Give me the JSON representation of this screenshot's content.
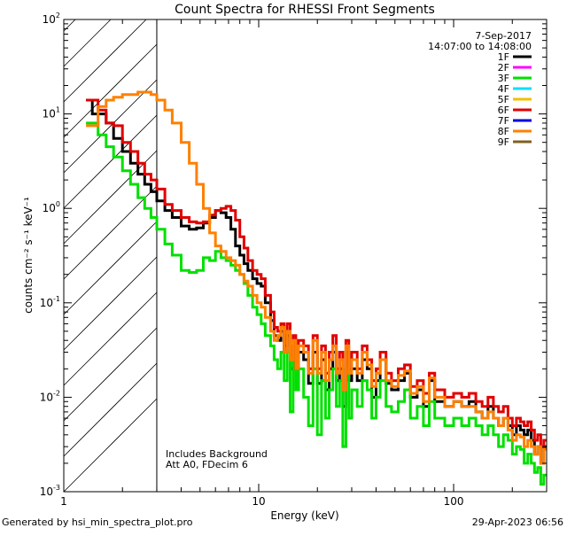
{
  "chart_data": {
    "type": "line",
    "title": "Count Spectra for RHESSI Front Segments",
    "xlabel": "Energy (keV)",
    "ylabel": "counts cm⁻² s⁻¹ keV⁻¹",
    "xscale": "log",
    "yscale": "log",
    "xlim": [
      1.0,
      300
    ],
    "ylim": [
      0.001,
      100
    ],
    "x_tick_labels": [
      "1",
      "10",
      "100"
    ],
    "y_tick_labels": [
      {
        "base": "10",
        "exp": "-3"
      },
      {
        "base": "10",
        "exp": "-2"
      },
      {
        "base": "10",
        "exp": "-1"
      },
      {
        "base": "10",
        "exp": "0"
      },
      {
        "base": "10",
        "exp": "1"
      },
      {
        "base": "10",
        "exp": "2"
      }
    ],
    "hatched_region": {
      "x_start": 1.0,
      "x_end": 3.0
    },
    "date_label": "7-Sep-2017",
    "time_range_label": "14:07:00 to 14:08:00",
    "annotation_lines": [
      "Includes Background",
      "Att A0, FDecim 6"
    ],
    "legend": [
      {
        "name": "1F",
        "color": "#000000"
      },
      {
        "name": "2F",
        "color": "#ff00ff"
      },
      {
        "name": "3F",
        "color": "#00e000"
      },
      {
        "name": "4F",
        "color": "#00e0ff"
      },
      {
        "name": "5F",
        "color": "#f0c000"
      },
      {
        "name": "6F",
        "color": "#e00000"
      },
      {
        "name": "7F",
        "color": "#0000e0"
      },
      {
        "name": "8F",
        "color": "#ff8000"
      },
      {
        "name": "9F",
        "color": "#806020"
      }
    ],
    "series": [
      {
        "name": "1F",
        "color": "#000000",
        "x": [
          1.3,
          1.4,
          1.5,
          1.65,
          1.8,
          2.0,
          2.2,
          2.4,
          2.6,
          2.8,
          3.0,
          3.3,
          3.6,
          4.0,
          4.4,
          4.8,
          5.2,
          5.6,
          6.0,
          6.4,
          6.8,
          7.2,
          7.6,
          8.0,
          8.4,
          8.8,
          9.3,
          9.8,
          10.3,
          10.8,
          11.5,
          12.0,
          12.5,
          13.0,
          13.5,
          14.0,
          14.5,
          15.0,
          15.5,
          16.0,
          17.0,
          18.0,
          19.0,
          20.0,
          21.0,
          22.0,
          23.0,
          24.0,
          25.0,
          26.0,
          27.0,
          28.0,
          29.0,
          30.0,
          32.0,
          34.0,
          36.0,
          38.0,
          40.0,
          42.0,
          45.0,
          48.0,
          52.0,
          56.0,
          60.0,
          65.0,
          70.0,
          75.0,
          80.0,
          90.0,
          100.0,
          110.0,
          120.0,
          130.0,
          140.0,
          150.0,
          160.0,
          170.0,
          180.0,
          190.0,
          200.0,
          210.0,
          220.0,
          230.0,
          240.0,
          250.0,
          260.0,
          270.0,
          280.0,
          290.0
        ],
        "y": [
          14,
          10,
          10,
          8,
          5.5,
          4,
          3,
          2.3,
          1.8,
          1.5,
          1.2,
          0.95,
          0.8,
          0.65,
          0.6,
          0.62,
          0.7,
          0.8,
          0.95,
          0.9,
          0.8,
          0.6,
          0.4,
          0.32,
          0.26,
          0.22,
          0.18,
          0.16,
          0.15,
          0.1,
          0.065,
          0.045,
          0.04,
          0.05,
          0.03,
          0.045,
          0.02,
          0.035,
          0.012,
          0.03,
          0.025,
          0.014,
          0.03,
          0.014,
          0.025,
          0.012,
          0.02,
          0.03,
          0.015,
          0.02,
          0.008,
          0.03,
          0.015,
          0.02,
          0.015,
          0.025,
          0.02,
          0.01,
          0.015,
          0.025,
          0.014,
          0.012,
          0.015,
          0.018,
          0.01,
          0.012,
          0.008,
          0.015,
          0.009,
          0.008,
          0.009,
          0.008,
          0.009,
          0.007,
          0.006,
          0.008,
          0.006,
          0.005,
          0.006,
          0.005,
          0.004,
          0.005,
          0.0045,
          0.004,
          0.0045,
          0.0035,
          0.0025,
          0.003,
          0.002,
          0.003
        ]
      },
      {
        "name": "3F",
        "color": "#00e000",
        "x": [
          1.3,
          1.4,
          1.5,
          1.65,
          1.8,
          2.0,
          2.2,
          2.4,
          2.6,
          2.8,
          3.0,
          3.3,
          3.6,
          4.0,
          4.4,
          4.8,
          5.2,
          5.6,
          6.0,
          6.4,
          6.8,
          7.2,
          7.6,
          8.0,
          8.4,
          8.8,
          9.3,
          9.8,
          10.3,
          10.8,
          11.5,
          12.0,
          12.5,
          13.0,
          13.5,
          14.0,
          14.5,
          15.0,
          15.5,
          16.0,
          17.0,
          18.0,
          19.0,
          20.0,
          21.0,
          22.0,
          23.0,
          24.0,
          25.0,
          26.0,
          27.0,
          28.0,
          29.0,
          30.0,
          32.0,
          34.0,
          36.0,
          38.0,
          40.0,
          42.0,
          45.0,
          48.0,
          52.0,
          56.0,
          60.0,
          65.0,
          70.0,
          75.0,
          80.0,
          90.0,
          100.0,
          110.0,
          120.0,
          130.0,
          140.0,
          150.0,
          160.0,
          170.0,
          180.0,
          190.0,
          200.0,
          210.0,
          220.0,
          230.0,
          240.0,
          250.0,
          260.0,
          270.0,
          280.0,
          290.0
        ],
        "y": [
          8,
          8,
          6,
          4.5,
          3.5,
          2.5,
          1.8,
          1.3,
          1.0,
          0.8,
          0.6,
          0.42,
          0.32,
          0.22,
          0.21,
          0.22,
          0.3,
          0.28,
          0.35,
          0.3,
          0.28,
          0.25,
          0.22,
          0.2,
          0.16,
          0.12,
          0.09,
          0.075,
          0.06,
          0.045,
          0.035,
          0.025,
          0.02,
          0.03,
          0.015,
          0.03,
          0.007,
          0.025,
          0.012,
          0.02,
          0.01,
          0.005,
          0.02,
          0.004,
          0.015,
          0.006,
          0.012,
          0.02,
          0.008,
          0.015,
          0.003,
          0.02,
          0.006,
          0.012,
          0.008,
          0.015,
          0.012,
          0.006,
          0.01,
          0.015,
          0.008,
          0.007,
          0.009,
          0.012,
          0.006,
          0.008,
          0.005,
          0.009,
          0.006,
          0.005,
          0.006,
          0.005,
          0.006,
          0.005,
          0.004,
          0.005,
          0.004,
          0.003,
          0.004,
          0.0035,
          0.0025,
          0.003,
          0.0028,
          0.002,
          0.0025,
          0.002,
          0.0016,
          0.0018,
          0.0012,
          0.0015
        ]
      },
      {
        "name": "6F",
        "color": "#e00000",
        "x": [
          1.3,
          1.4,
          1.5,
          1.65,
          1.8,
          2.0,
          2.2,
          2.4,
          2.6,
          2.8,
          3.0,
          3.3,
          3.6,
          4.0,
          4.4,
          4.8,
          5.2,
          5.6,
          6.0,
          6.4,
          6.8,
          7.2,
          7.6,
          8.0,
          8.4,
          8.8,
          9.3,
          9.8,
          10.3,
          10.8,
          11.5,
          12.0,
          12.5,
          13.0,
          13.5,
          14.0,
          14.5,
          15.0,
          15.5,
          16.0,
          17.0,
          18.0,
          19.0,
          20.0,
          21.0,
          22.0,
          23.0,
          24.0,
          25.0,
          26.0,
          27.0,
          28.0,
          29.0,
          30.0,
          32.0,
          34.0,
          36.0,
          38.0,
          40.0,
          42.0,
          45.0,
          48.0,
          52.0,
          56.0,
          60.0,
          65.0,
          70.0,
          75.0,
          80.0,
          90.0,
          100.0,
          110.0,
          120.0,
          130.0,
          140.0,
          150.0,
          160.0,
          170.0,
          180.0,
          190.0,
          200.0,
          210.0,
          220.0,
          230.0,
          240.0,
          250.0,
          260.0,
          270.0,
          280.0,
          290.0
        ],
        "y": [
          14,
          14,
          11,
          8,
          7.5,
          5,
          4,
          3,
          2.3,
          2.0,
          1.6,
          1.1,
          0.95,
          0.8,
          0.72,
          0.7,
          0.72,
          0.85,
          0.95,
          1.0,
          1.05,
          0.95,
          0.75,
          0.5,
          0.38,
          0.28,
          0.22,
          0.2,
          0.18,
          0.12,
          0.08,
          0.055,
          0.05,
          0.06,
          0.035,
          0.06,
          0.025,
          0.045,
          0.02,
          0.04,
          0.035,
          0.02,
          0.045,
          0.02,
          0.035,
          0.018,
          0.03,
          0.045,
          0.02,
          0.03,
          0.012,
          0.04,
          0.02,
          0.03,
          0.02,
          0.035,
          0.025,
          0.015,
          0.02,
          0.03,
          0.018,
          0.015,
          0.02,
          0.022,
          0.013,
          0.015,
          0.011,
          0.018,
          0.012,
          0.01,
          0.011,
          0.01,
          0.011,
          0.009,
          0.008,
          0.01,
          0.008,
          0.007,
          0.008,
          0.006,
          0.005,
          0.006,
          0.0055,
          0.005,
          0.0055,
          0.0045,
          0.0035,
          0.004,
          0.003,
          0.0035
        ]
      },
      {
        "name": "8F",
        "color": "#ff8000",
        "x": [
          1.3,
          1.4,
          1.5,
          1.65,
          1.8,
          2.0,
          2.2,
          2.4,
          2.6,
          2.8,
          3.0,
          3.3,
          3.6,
          4.0,
          4.4,
          4.8,
          5.2,
          5.6,
          6.0,
          6.4,
          6.8,
          7.2,
          7.6,
          8.0,
          8.4,
          8.8,
          9.3,
          9.8,
          10.3,
          10.8,
          11.5,
          12.0,
          12.5,
          13.0,
          13.5,
          14.0,
          14.5,
          15.0,
          15.5,
          16.0,
          17.0,
          18.0,
          19.0,
          20.0,
          21.0,
          22.0,
          23.0,
          24.0,
          25.0,
          26.0,
          27.0,
          28.0,
          29.0,
          30.0,
          32.0,
          34.0,
          36.0,
          38.0,
          40.0,
          42.0,
          45.0,
          48.0,
          52.0,
          56.0,
          60.0,
          65.0,
          70.0,
          75.0,
          80.0,
          90.0,
          100.0,
          110.0,
          120.0,
          130.0,
          140.0,
          150.0,
          160.0,
          170.0,
          180.0,
          190.0,
          200.0,
          210.0,
          220.0,
          230.0,
          240.0,
          250.0,
          260.0,
          270.0,
          280.0,
          290.0
        ],
        "y": [
          7.5,
          7.5,
          12,
          14,
          15,
          16,
          16,
          17,
          17,
          16,
          14,
          11,
          8,
          5,
          3.0,
          1.8,
          1.0,
          0.55,
          0.4,
          0.35,
          0.3,
          0.28,
          0.25,
          0.2,
          0.17,
          0.15,
          0.12,
          0.1,
          0.09,
          0.07,
          0.05,
          0.04,
          0.045,
          0.055,
          0.03,
          0.05,
          0.025,
          0.04,
          0.02,
          0.035,
          0.03,
          0.018,
          0.04,
          0.018,
          0.03,
          0.015,
          0.025,
          0.035,
          0.018,
          0.025,
          0.012,
          0.035,
          0.018,
          0.025,
          0.018,
          0.03,
          0.022,
          0.013,
          0.018,
          0.025,
          0.015,
          0.013,
          0.017,
          0.019,
          0.011,
          0.013,
          0.009,
          0.016,
          0.01,
          0.008,
          0.009,
          0.008,
          0.008,
          0.007,
          0.006,
          0.007,
          0.006,
          0.005,
          0.006,
          0.0045,
          0.0035,
          0.004,
          0.0038,
          0.003,
          0.0035,
          0.003,
          0.0025,
          0.003,
          0.002,
          0.0028
        ]
      }
    ]
  },
  "footer": {
    "generated_by": "Generated by hsi_min_spectra_plot.pro",
    "timestamp": "29-Apr-2023 06:56"
  }
}
